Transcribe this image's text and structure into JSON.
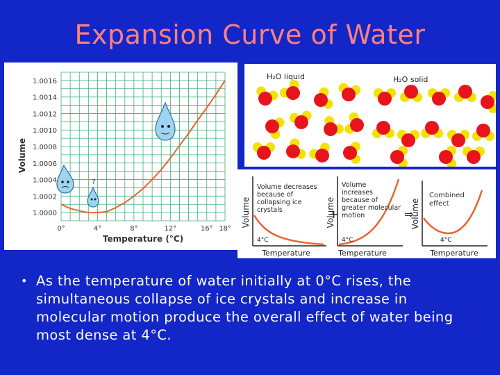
{
  "slide": {
    "title": "Expansion Curve of Water",
    "bullet": "As the temperature of water initially at 0°C rises, the simultaneous collapse of ice crystals and increase in molecular motion produce the overall effect of water being most dense at 4°C."
  },
  "chart_data": [
    {
      "type": "line",
      "xlabel": "Temperature (°C)",
      "ylabel": "Volume",
      "x_ticks": [
        "0°",
        "4°",
        "8°",
        "12°",
        "16°",
        "18°"
      ],
      "y_ticks": [
        "1.0000",
        "1.0002",
        "1.0004",
        "1.0006",
        "1.0008",
        "1.0010",
        "1.0012",
        "1.0014",
        "1.0016"
      ],
      "xlim": [
        0,
        18
      ],
      "ylim": [
        0.9999,
        1.0017
      ],
      "grid": true,
      "series": [
        {
          "x": [
            0,
            1,
            2,
            3,
            4,
            5,
            6,
            7,
            8,
            9,
            10,
            11,
            12,
            13,
            14,
            15,
            16,
            17,
            18
          ],
          "y": [
            1.0001,
            1.00005,
            1.00002,
            1.0,
            1.0,
            1.00001,
            1.00006,
            1.00012,
            1.0002,
            1.00029,
            1.0004,
            1.00052,
            1.00066,
            1.00081,
            1.00096,
            1.00112,
            1.00127,
            1.00143,
            1.0016
          ]
        }
      ],
      "line_color": "#e8642c"
    },
    {
      "type": "line",
      "xlabel": "Temperature",
      "ylabel": "Volume",
      "annotation": "Volume decreases because of collapsing ice crystals",
      "x_tick": "4°C"
    },
    {
      "type": "line",
      "xlabel": "Temperature",
      "ylabel": "Volume",
      "annotation": "Volume increases because of greater molecular motion",
      "x_tick": "4°C"
    },
    {
      "type": "line",
      "xlabel": "Temperature",
      "ylabel": "Volume",
      "annotation": "Combined effect",
      "x_tick": "4°C"
    }
  ],
  "molecules": {
    "liquid_label": "H₂O liquid",
    "solid_label": "H₂O solid"
  },
  "operators": {
    "plus": "+",
    "arrow": "⇒"
  },
  "colors": {
    "background": "#1326c8",
    "title": "#ff8080",
    "oxygen": "#e8141c",
    "hydrogen": "#f2e20a",
    "curve": "#e8642c"
  }
}
